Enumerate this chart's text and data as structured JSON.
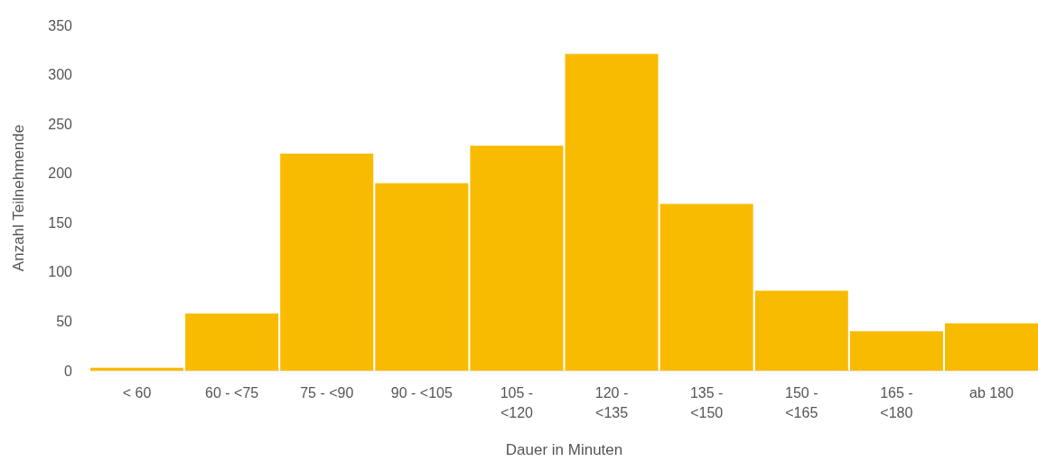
{
  "chart_data": {
    "type": "bar",
    "xlabel": "Dauer in Minuten",
    "ylabel": "Anzahl Teilnehmende",
    "categories": [
      "< 60",
      "60 - <75",
      "75 - <90",
      "90 - <105",
      "105 - <120",
      "120 - <135",
      "135 - <150",
      "150 - <165",
      "165 - <180",
      "ab 180"
    ],
    "values": [
      3,
      58,
      220,
      190,
      228,
      321,
      169,
      81,
      40,
      48
    ],
    "color": "#f9bb00",
    "ylim": [
      0,
      350
    ],
    "yticks": [
      0,
      50,
      100,
      150,
      200,
      250,
      300,
      350
    ],
    "grid": false
  }
}
